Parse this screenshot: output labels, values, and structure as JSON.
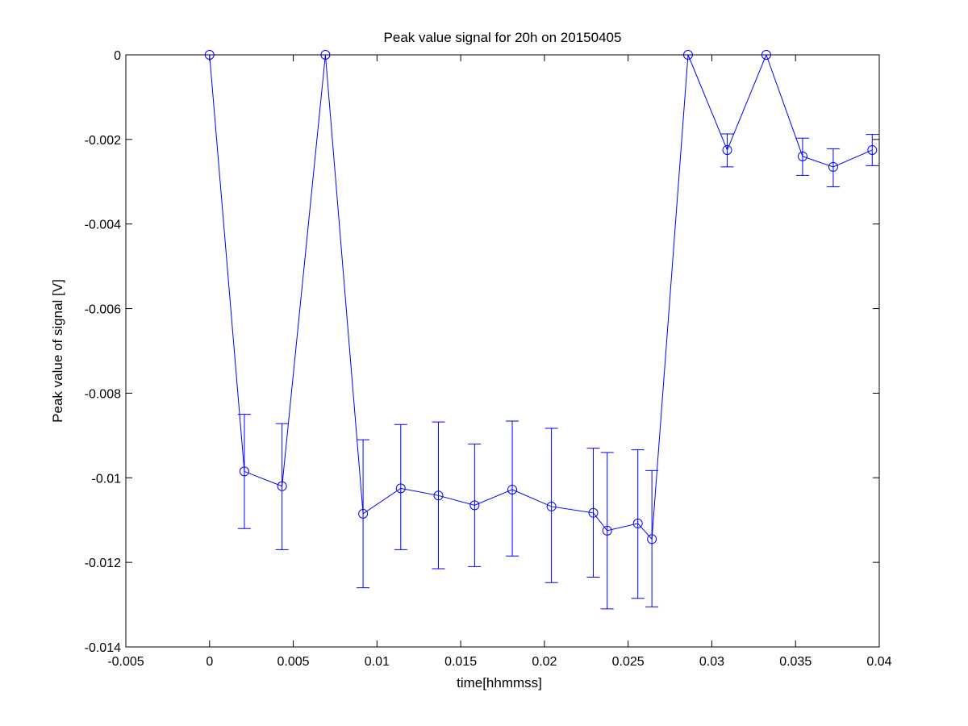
{
  "chart_data": {
    "type": "line",
    "title": "Peak value signal for 20h on 20150405",
    "xlabel": "time[hhmmss]",
    "ylabel": "Peak value of signal [V]",
    "xlim": [
      -0.005,
      0.04
    ],
    "ylim": [
      -0.014,
      0
    ],
    "xticks": [
      -0.005,
      0,
      0.005,
      0.01,
      0.015,
      0.02,
      0.025,
      0.03,
      0.035,
      0.04
    ],
    "xtick_labels": [
      "-0.005",
      "0",
      "0.005",
      "0.01",
      "0.015",
      "0.02",
      "0.025",
      "0.03",
      "0.035",
      "0.04"
    ],
    "yticks": [
      0,
      -0.002,
      -0.004,
      -0.006,
      -0.008,
      -0.01,
      -0.012,
      -0.014
    ],
    "ytick_labels": [
      "0",
      "-0.002",
      "-0.004",
      "-0.006",
      "-0.008",
      "-0.01",
      "-0.012",
      "-0.014"
    ],
    "grid": false,
    "line_color": "#0000ff",
    "marker": "circle",
    "series": [
      {
        "x": [
          0,
          0.00208,
          0.00433,
          0.00692,
          0.00917,
          0.01142,
          0.01367,
          0.01583,
          0.01808,
          0.02042,
          0.02292,
          0.02375,
          0.02558,
          0.02642,
          0.02858,
          0.03092,
          0.03325,
          0.03542,
          0.03725,
          0.03958
        ],
        "y": [
          0,
          -0.00985,
          -0.0102,
          0,
          -0.01085,
          -0.01025,
          -0.01042,
          -0.01065,
          -0.01028,
          -0.01068,
          -0.01083,
          -0.01125,
          -0.01108,
          -0.01145,
          0,
          -0.00225,
          0,
          -0.0024,
          -0.00265,
          -0.00225
        ],
        "err_low": [
          null,
          -0.0112,
          -0.0117,
          null,
          -0.0126,
          -0.0117,
          -0.01215,
          -0.0121,
          -0.01185,
          -0.01248,
          -0.01235,
          -0.0131,
          -0.01285,
          -0.01305,
          null,
          -0.00265,
          null,
          -0.00285,
          -0.00312,
          -0.00262
        ],
        "err_high": [
          null,
          -0.0085,
          -0.00872,
          null,
          -0.0091,
          -0.00874,
          -0.00868,
          -0.0092,
          -0.00866,
          -0.00883,
          -0.0093,
          -0.0094,
          -0.00934,
          -0.00983,
          null,
          -0.00187,
          null,
          -0.00197,
          -0.00222,
          -0.00188
        ]
      }
    ]
  }
}
